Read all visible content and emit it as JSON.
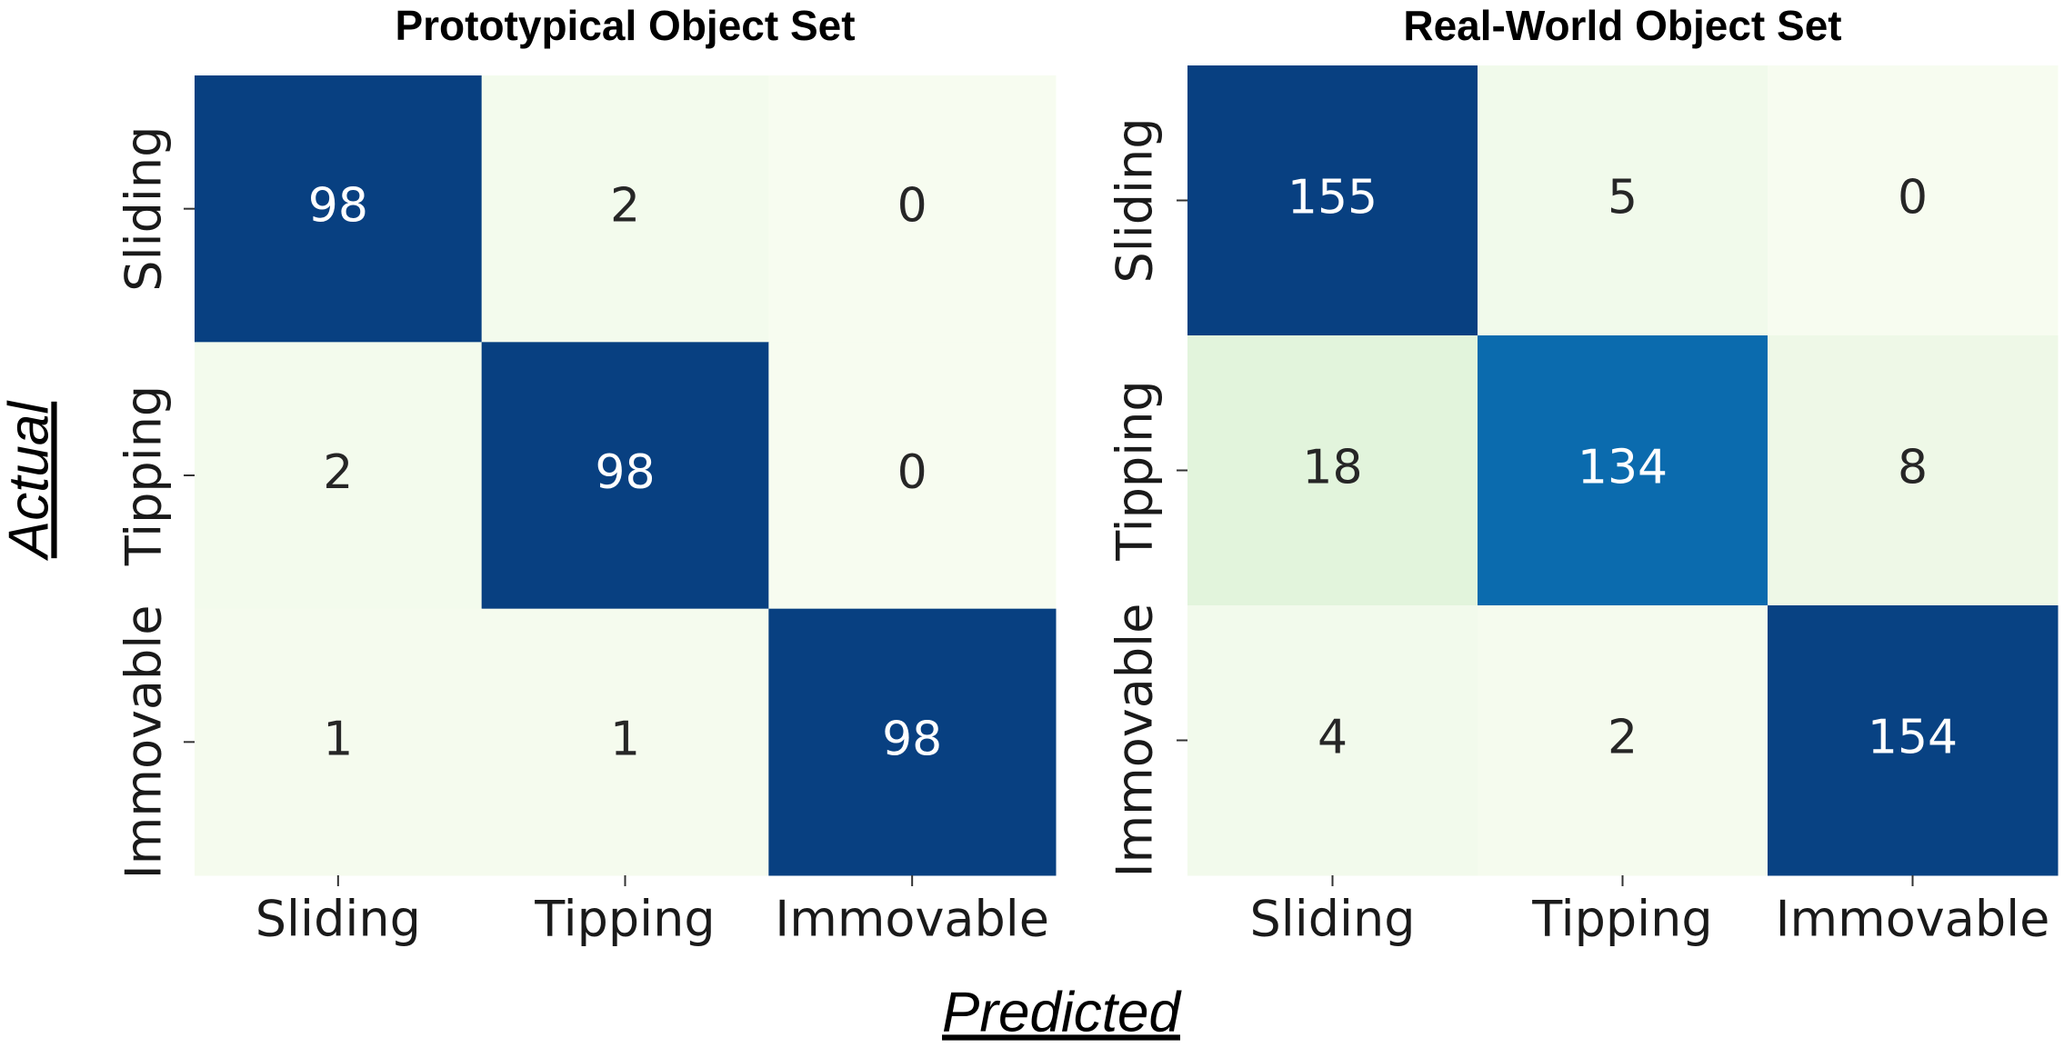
{
  "chart_data": [
    {
      "type": "heatmap",
      "title": "Prototypical Object Set",
      "x_categories": [
        "Sliding",
        "Tipping",
        "Immovable"
      ],
      "y_categories": [
        "Sliding",
        "Tipping",
        "Immovable"
      ],
      "values": [
        [
          98,
          2,
          0
        ],
        [
          2,
          98,
          0
        ],
        [
          1,
          1,
          98
        ]
      ],
      "colormap": [
        "#f7fcf0",
        "#e0f3db",
        "#ccebc5",
        "#a8ddb5",
        "#7bccc4",
        "#4eb3d3",
        "#2b8cbe",
        "#0868ac",
        "#084081"
      ]
    },
    {
      "type": "heatmap",
      "title": "Real-World Object Set",
      "x_categories": [
        "Sliding",
        "Tipping",
        "Immovable"
      ],
      "y_categories": [
        "Sliding",
        "Tipping",
        "Immovable"
      ],
      "values": [
        [
          155,
          5,
          0
        ],
        [
          18,
          134,
          8
        ],
        [
          4,
          2,
          154
        ]
      ],
      "colormap": [
        "#f7fcf0",
        "#e0f3db",
        "#ccebc5",
        "#a8ddb5",
        "#7bccc4",
        "#4eb3d3",
        "#2b8cbe",
        "#0868ac",
        "#084081"
      ]
    }
  ],
  "shared_labels": {
    "x": "Predicted",
    "y": "Actual"
  }
}
